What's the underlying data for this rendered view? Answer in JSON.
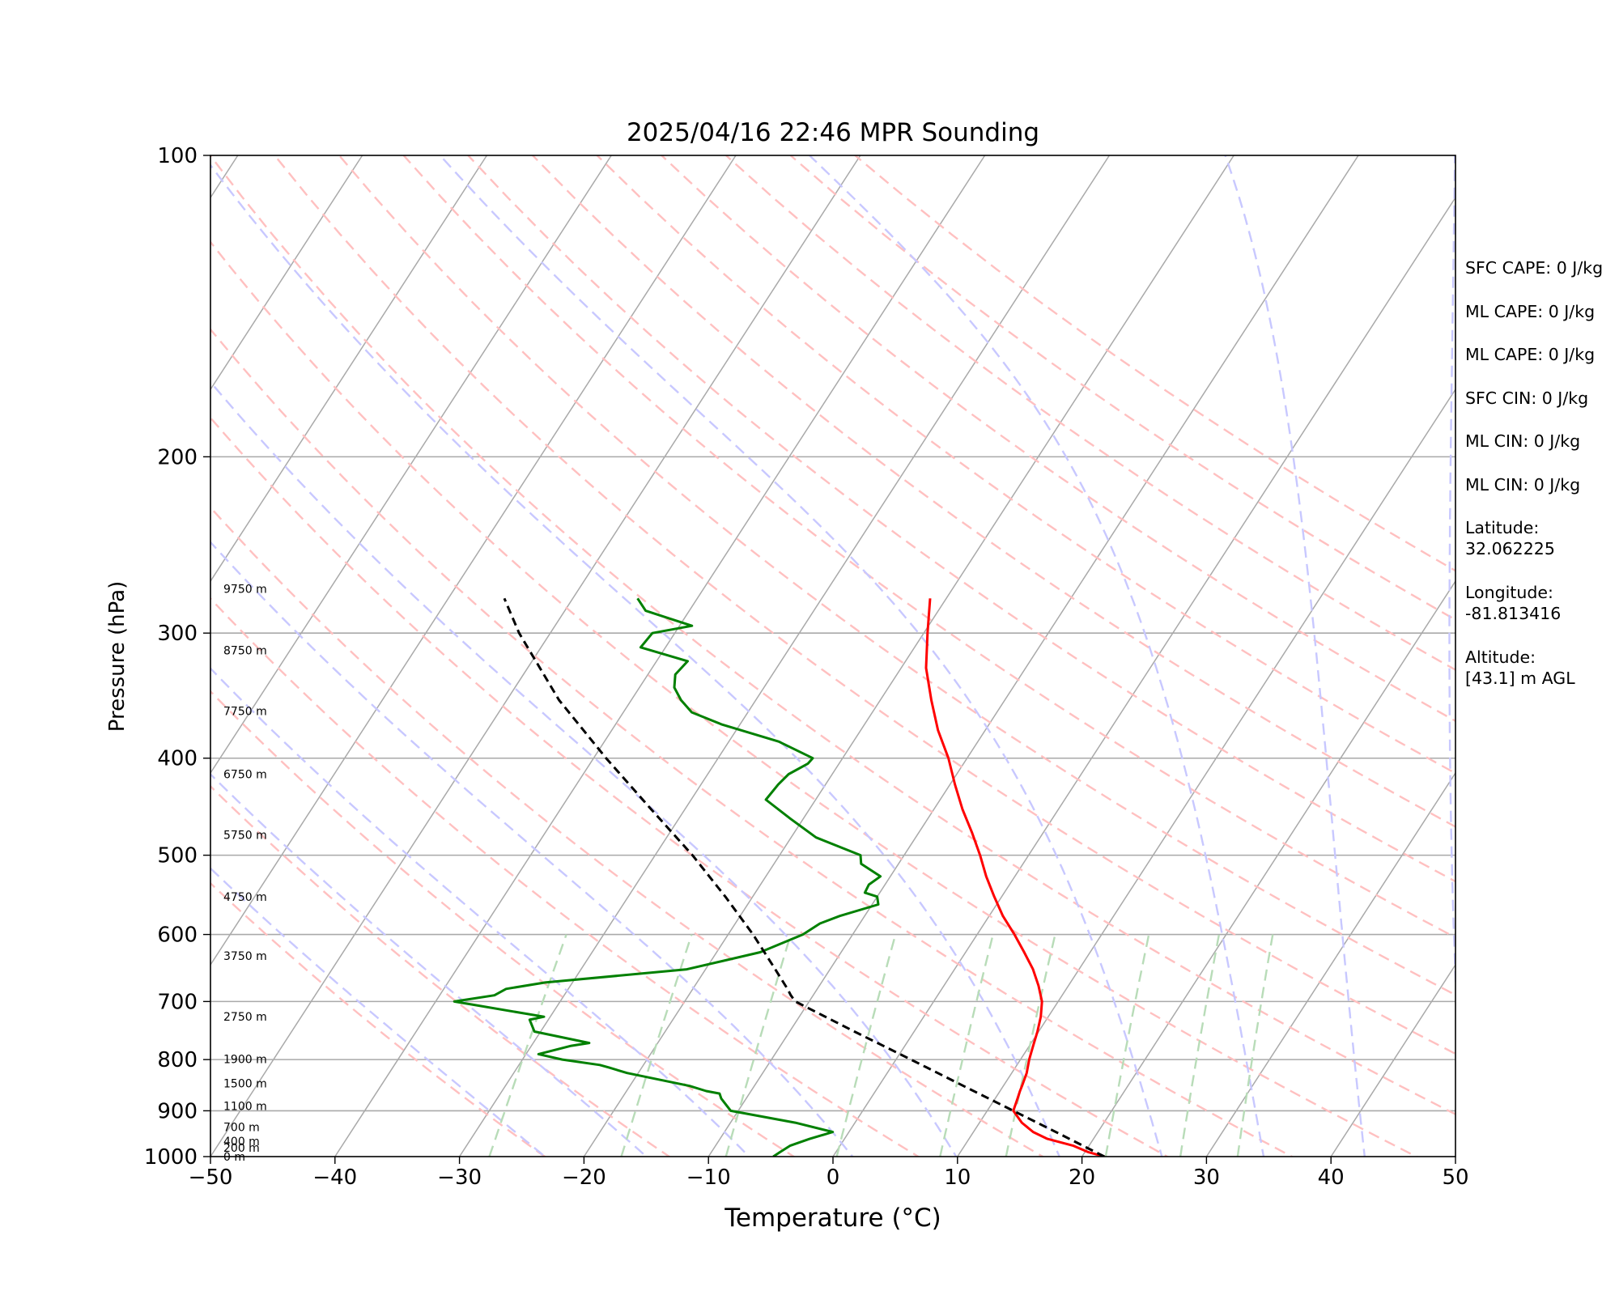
{
  "chart_data": {
    "type": "skew-t",
    "title": "2025/04/16 22:46 MPR Sounding",
    "xlabel": "Temperature (°C)",
    "ylabel": "Pressure (hPa)",
    "xlim": [
      -50,
      50
    ],
    "ylim": [
      1000,
      100
    ],
    "y_scale": "log",
    "grid": true,
    "x_ticks": [
      -50,
      -40,
      -30,
      -20,
      -10,
      0,
      10,
      20,
      30,
      40,
      50
    ],
    "x_tick_labels": [
      "−50",
      "−40",
      "−30",
      "−20",
      "−10",
      "0",
      "10",
      "20",
      "30",
      "40",
      "50"
    ],
    "y_ticks": [
      1000,
      900,
      800,
      700,
      600,
      500,
      400,
      300,
      200,
      100
    ],
    "y_tick_labels": [
      "1000",
      "900",
      "800",
      "700",
      "600",
      "500",
      "400",
      "300",
      "200",
      "100"
    ],
    "isotherms": [
      -140,
      -130,
      -120,
      -110,
      -100,
      -90,
      -80,
      -70,
      -60,
      -50,
      -40,
      -30,
      -20,
      -10,
      0,
      10,
      20,
      30,
      40,
      50
    ],
    "dry_adiabats_theta_K": [
      250,
      260,
      270,
      280,
      290,
      300,
      310,
      320,
      330,
      340,
      350,
      360,
      370,
      380,
      390,
      400,
      410,
      420,
      430
    ],
    "moist_adiabats_start_C": [
      -20,
      -12,
      -4,
      4,
      12,
      20,
      28,
      36,
      44,
      52
    ],
    "mixing_ratio_lines": {
      "p_top_hPa": 600,
      "temps_at_1000_hPa": [
        -27.6,
        -17.0,
        -8.6,
        0.3,
        8.6,
        13.9,
        21.9,
        27.9,
        32.5
      ]
    },
    "colors": {
      "temperature": "#ff0000",
      "dewpoint": "#008000",
      "parcel": "#000000",
      "isotherm": "#a9a9a9",
      "dry_adiabat": "#ffc0c0",
      "moist_adiabat": "#c8c8ff",
      "mixing_ratio": "#b8dcb8"
    },
    "series": [
      {
        "key": "temperature",
        "pressure": [
          1000,
          990,
          975,
          960,
          945,
          925,
          900,
          875,
          860,
          850,
          825,
          800,
          775,
          750,
          725,
          700,
          675,
          650,
          625,
          600,
          575,
          550,
          525,
          500,
          475,
          450,
          425,
          400,
          375,
          350,
          325,
          300,
          277
        ],
        "temperature": [
          21.8,
          20.3,
          18.7,
          16.3,
          14.8,
          13.4,
          12.1,
          11.8,
          11.6,
          11.5,
          11.2,
          10.7,
          10.3,
          9.9,
          9.4,
          8.7,
          7.6,
          6.3,
          4.7,
          3.0,
          1.1,
          -0.6,
          -2.3,
          -3.9,
          -5.7,
          -7.7,
          -9.6,
          -11.5,
          -13.8,
          -15.9,
          -18.0,
          -19.7,
          -21.3
        ]
      },
      {
        "key": "dewpoint",
        "pressure": [
          1000,
          990,
          975,
          960,
          945,
          925,
          900,
          875,
          865,
          860,
          850,
          825,
          815,
          810,
          800,
          790,
          775,
          770,
          750,
          730,
          725,
          700,
          690,
          680,
          670,
          650,
          625,
          600,
          585,
          575,
          560,
          550,
          545,
          535,
          525,
          510,
          500,
          480,
          460,
          440,
          425,
          415,
          405,
          400,
          385,
          370,
          360,
          350,
          340,
          330,
          320,
          310,
          300,
          295,
          285,
          277
        ],
        "dewpoint": [
          -4.8,
          -4.5,
          -4.0,
          -2.8,
          -1.3,
          -4.8,
          -10.6,
          -12.0,
          -12.4,
          -13.6,
          -15.2,
          -20.9,
          -22.6,
          -23.5,
          -26.8,
          -29.0,
          -26.8,
          -25.5,
          -30.5,
          -31.5,
          -30.5,
          -38.5,
          -35.6,
          -35.0,
          -32.2,
          -21.5,
          -16.5,
          -14.0,
          -13.2,
          -12.0,
          -9.5,
          -10.0,
          -11.2,
          -11.3,
          -10.8,
          -13.0,
          -13.5,
          -18.0,
          -21.0,
          -24.0,
          -23.8,
          -23.5,
          -22.5,
          -22.4,
          -26.0,
          -31.5,
          -34.5,
          -36.0,
          -37.2,
          -37.8,
          -37.5,
          -42.0,
          -41.8,
          -39.0,
          -43.5,
          -44.8
        ]
      },
      {
        "key": "parcel",
        "pressure": [
          1000,
          950,
          900,
          850,
          800,
          750,
          700,
          690,
          680,
          650,
          600,
          550,
          500,
          450,
          400,
          350,
          300,
          277
        ],
        "temperature": [
          21.8,
          17.1,
          12.1,
          6.8,
          1.2,
          -4.8,
          -11.1,
          -11.8,
          -12.4,
          -14.4,
          -18.0,
          -22.2,
          -27.0,
          -32.7,
          -39.0,
          -45.8,
          -52.5,
          -55.5
        ]
      }
    ],
    "height_labels": [
      {
        "text": "9750 m",
        "pressure": 271
      },
      {
        "text": "8750 m",
        "pressure": 312
      },
      {
        "text": "7750 m",
        "pressure": 359
      },
      {
        "text": "6750 m",
        "pressure": 415
      },
      {
        "text": "5750 m",
        "pressure": 477
      },
      {
        "text": "4750 m",
        "pressure": 550
      },
      {
        "text": "3750 m",
        "pressure": 630
      },
      {
        "text": "2750 m",
        "pressure": 725
      },
      {
        "text": "1900 m",
        "pressure": 799
      },
      {
        "text": "1500 m",
        "pressure": 845
      },
      {
        "text": "1100 m",
        "pressure": 890
      },
      {
        "text": "700 m",
        "pressure": 934
      },
      {
        "text": "400 m",
        "pressure": 965
      },
      {
        "text": "200 m",
        "pressure": 980
      },
      {
        "text": "0 m",
        "pressure": 1000
      }
    ]
  },
  "info": {
    "lines": [
      "SFC CAPE: 0 J/kg",
      "ML CAPE: 0 J/kg",
      "ML CAPE: 0 J/kg",
      "SFC CIN: 0 J/kg",
      "ML CIN: 0 J/kg",
      "ML CIN: 0 J/kg"
    ],
    "latitude_label": "Latitude:",
    "latitude_value": "32.062225",
    "longitude_label": "Longitude:",
    "longitude_value": "-81.813416",
    "altitude_label": "Altitude:",
    "altitude_value": "[43.1] m AGL"
  }
}
